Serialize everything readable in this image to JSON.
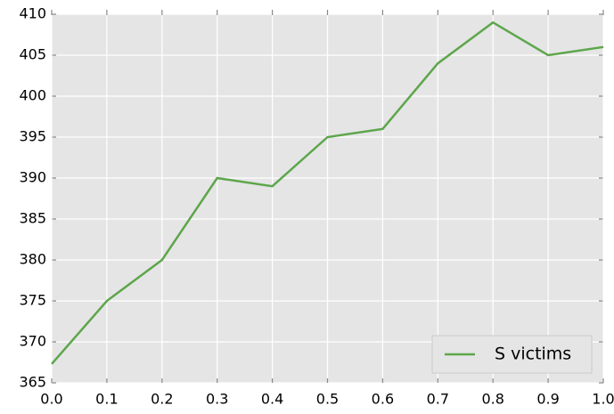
{
  "chart_data": {
    "type": "line",
    "x": [
      0,
      0.1,
      0.2,
      0.3,
      0.4,
      0.5,
      0.6,
      0.7,
      0.8,
      0.9,
      1.0
    ],
    "series": [
      {
        "name": "S victims",
        "color": "#5da64b",
        "values": [
          367.3,
          375,
          380,
          390,
          389,
          395,
          396,
          404,
          409,
          405,
          406
        ]
      }
    ],
    "xlim": [
      0,
      1
    ],
    "ylim": [
      365,
      410
    ],
    "xticks": [
      {
        "value": 0,
        "label": "0.0"
      },
      0.1,
      0.2,
      0.3,
      0.4,
      0.5,
      0.6,
      0.7,
      0.8,
      0.9,
      {
        "value": 1,
        "label": "1.0"
      }
    ],
    "yticks": [
      365,
      370,
      375,
      380,
      385,
      390,
      395,
      400,
      405,
      410
    ],
    "grid": true,
    "legend": "lower right"
  }
}
